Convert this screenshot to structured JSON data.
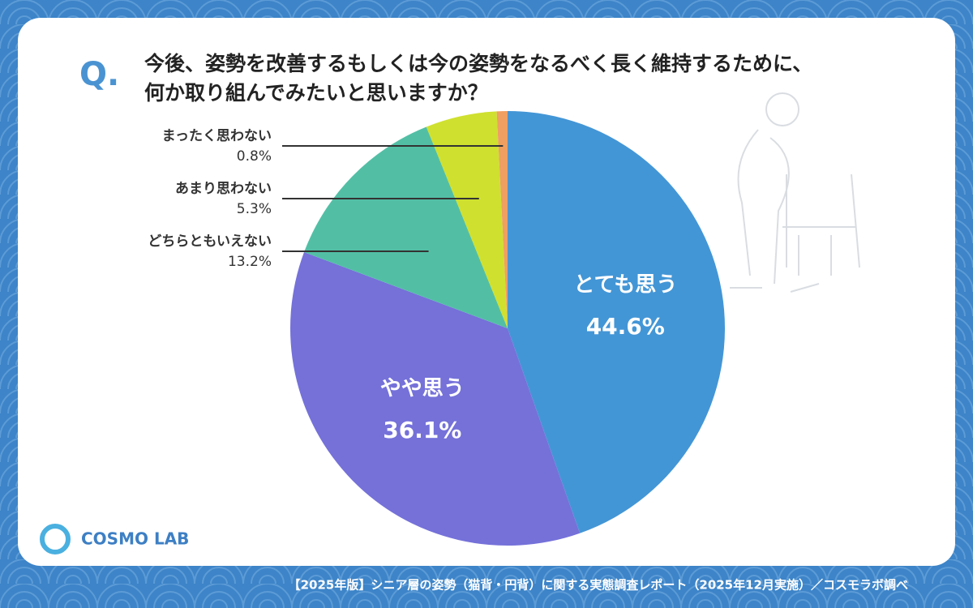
{
  "chart_data": {
    "type": "pie",
    "question_mark": "Q.",
    "title": [
      "今後、姿勢を改善するもしくは今の姿勢をなるべく長く維持するために、",
      "何か取り組んでみたいと思いますか？"
    ],
    "categories": [
      "とても思う",
      "やや思う",
      "どちらともいえない",
      "あまり思わない",
      "まったく思わない"
    ],
    "values": [
      44.6,
      36.1,
      13.2,
      5.3,
      0.8
    ],
    "value_labels": [
      "44.6%",
      "36.1%",
      "13.2%",
      "5.3%",
      "0.8%"
    ],
    "colors": [
      "#4396d6",
      "#7571d9",
      "#52bfa5",
      "#cfe02f",
      "#ef9f62"
    ],
    "logo": "COSMO LAB",
    "footer": "【2025年版】シニア層の姿勢（猫背・円背）に関する実態調査レポート（2025年12月実施）／コスモラボ調べ"
  }
}
